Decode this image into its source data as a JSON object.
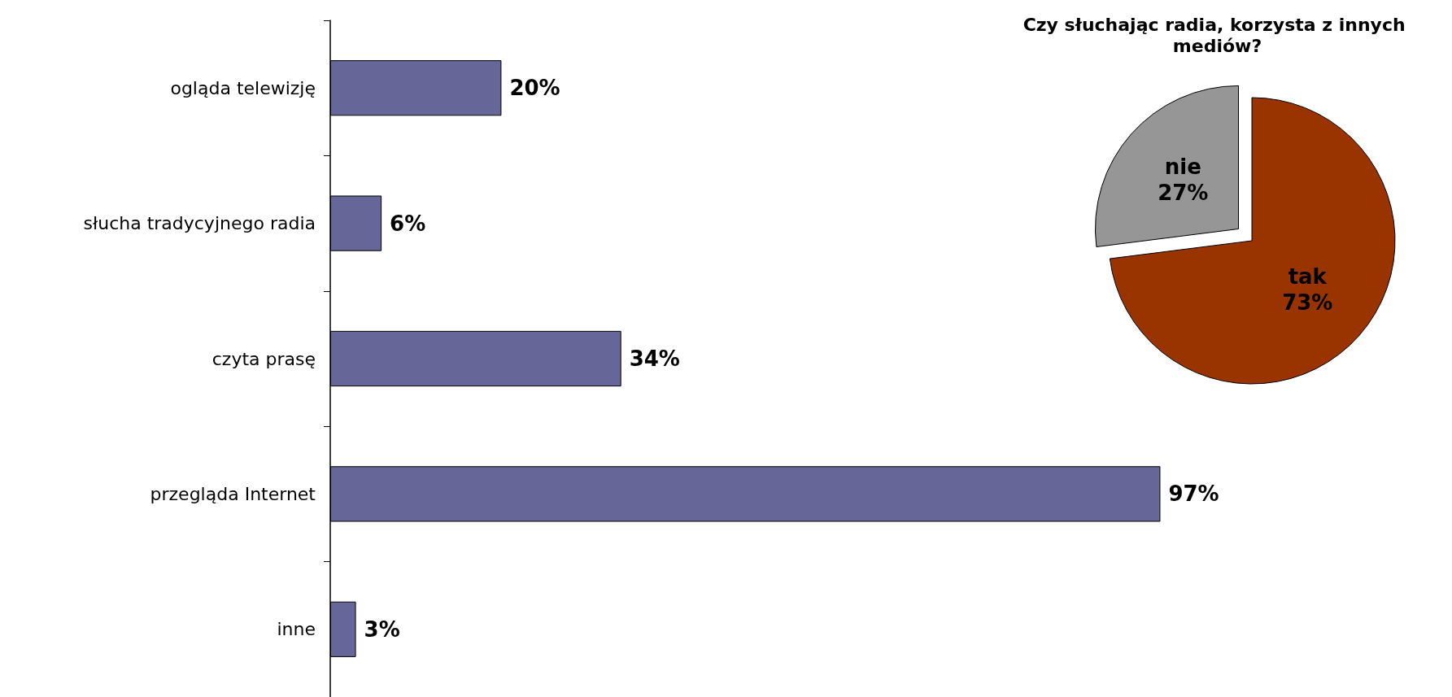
{
  "chart_data": [
    {
      "type": "bar",
      "orientation": "horizontal",
      "categories": [
        "ogląda telewizję",
        "słucha tradycyjnego radia",
        "czyta prasę",
        "przegląda Internet",
        "inne"
      ],
      "values": [
        20,
        6,
        34,
        97,
        3
      ],
      "value_labels": [
        "20%",
        "6%",
        "34%",
        "97%",
        "3%"
      ],
      "color": "#666699"
    },
    {
      "type": "pie",
      "title": "Czy słuchając radia, korzysta z innych mediów?",
      "categories": [
        "tak",
        "nie"
      ],
      "values": [
        73,
        27
      ],
      "value_labels": [
        "73%",
        "27%"
      ],
      "colors": [
        "#993300",
        "#969696"
      ]
    }
  ]
}
